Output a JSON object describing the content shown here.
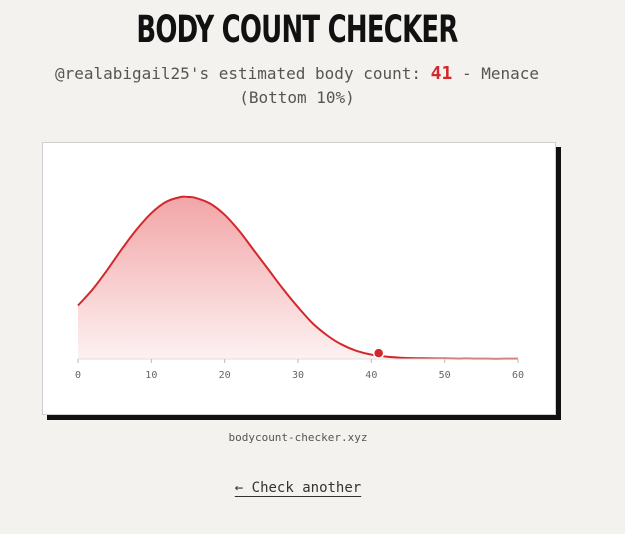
{
  "header": {
    "title": "BODY COUNT CHECKER"
  },
  "result": {
    "prefix": "@realabigail25's estimated body count: ",
    "count": "41",
    "suffix": " - Menace (Bottom 10%)"
  },
  "colors": {
    "accent": "#d3282b",
    "background": "#f4f2ee",
    "card_shadow": "#111111"
  },
  "chart_data": {
    "type": "area",
    "x_ticks": [
      0,
      10,
      20,
      30,
      40,
      50,
      60
    ],
    "xlim": [
      0,
      60
    ],
    "ylim": [
      0,
      1
    ],
    "distribution": {
      "x": [
        0,
        2,
        4,
        6,
        8,
        10,
        12,
        14,
        15,
        16,
        18,
        20,
        22,
        24,
        26,
        28,
        30,
        32,
        34,
        36,
        38,
        40,
        42,
        44,
        46,
        48,
        50,
        52,
        54,
        56,
        58,
        60
      ],
      "y": [
        0.33,
        0.43,
        0.55,
        0.68,
        0.8,
        0.9,
        0.97,
        1.0,
        1.0,
        0.995,
        0.96,
        0.89,
        0.79,
        0.67,
        0.55,
        0.43,
        0.32,
        0.22,
        0.145,
        0.088,
        0.05,
        0.027,
        0.015,
        0.008,
        0.005,
        0.004,
        0.003,
        0.002,
        0.002,
        0.001,
        0.001,
        0.001
      ]
    },
    "marker": {
      "x": 41,
      "y": 0.03
    },
    "grid": false,
    "legend": "none"
  },
  "footer": {
    "url": "bodycount-checker.xyz",
    "back_label": "← Check another"
  }
}
